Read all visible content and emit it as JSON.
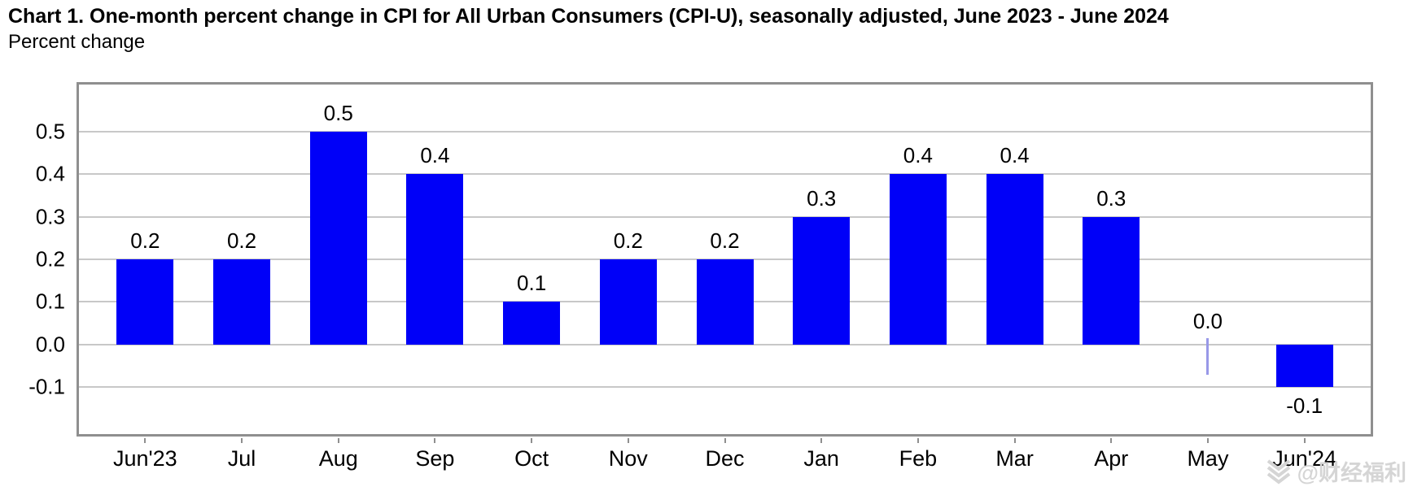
{
  "header": {
    "title": "Chart 1. One-month percent change in CPI for All Urban Consumers (CPI-U), seasonally adjusted, June 2023 - June 2024",
    "subtitle": "Percent change"
  },
  "chart_data": {
    "type": "bar",
    "title": "Chart 1. One-month percent change in CPI for All Urban Consumers (CPI-U), seasonally adjusted, June 2023 - June 2024",
    "xlabel": "",
    "ylabel": "Percent change",
    "categories": [
      "Jun'23",
      "Jul",
      "Aug",
      "Sep",
      "Oct",
      "Nov",
      "Dec",
      "Jan",
      "Feb",
      "Mar",
      "Apr",
      "May",
      "Jun'24"
    ],
    "values": [
      0.2,
      0.2,
      0.5,
      0.4,
      0.1,
      0.2,
      0.2,
      0.3,
      0.4,
      0.4,
      0.3,
      0.0,
      -0.1
    ],
    "value_labels": [
      "0.2",
      "0.2",
      "0.5",
      "0.4",
      "0.1",
      "0.2",
      "0.2",
      "0.3",
      "0.4",
      "0.4",
      "0.3",
      "0.0",
      "-0.1"
    ],
    "y_tick_values": [
      0.5,
      0.4,
      0.3,
      0.2,
      0.1,
      0.0,
      -0.1
    ],
    "y_tick_labels": [
      "0.5",
      "0.4",
      "0.3",
      "0.2",
      "0.1",
      "0.0",
      "-0.1"
    ],
    "ylim": [
      -0.21,
      0.61
    ],
    "grid": true,
    "legend": false
  },
  "colors": {
    "bar": "#0000f8",
    "zero_marker": "#9898e8",
    "gridline": "#c8c8c8",
    "plot_border": "#8f8f8f",
    "text": "#000000",
    "watermark": "#d5d5d5"
  },
  "watermark": {
    "text": "@财经福利",
    "icon": "chevron-stack-logo"
  }
}
